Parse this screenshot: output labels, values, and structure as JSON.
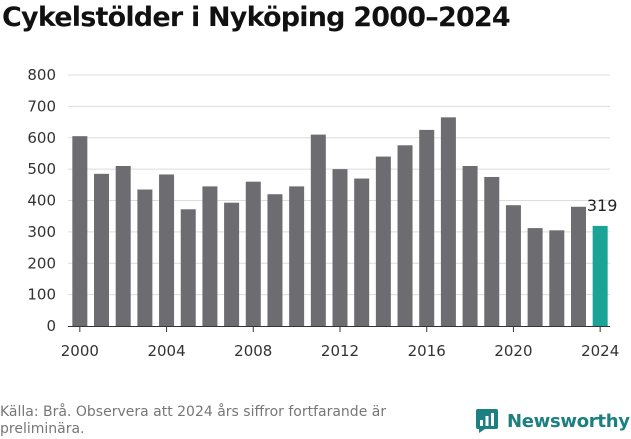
{
  "title": "Cykelstölder i Nyköping 2000–2024",
  "source": "Källa: Brå. Observera att 2024 års siffror fortfarande är preliminära.",
  "brand": {
    "name": "Newsworthy",
    "icon": "newsworthy-logo-icon",
    "color": "#1c8080"
  },
  "chart_data": {
    "type": "bar",
    "title": "Cykelstölder i Nyköping 2000–2024",
    "xlabel": "",
    "ylabel": "",
    "categories": [
      2000,
      2001,
      2002,
      2003,
      2004,
      2005,
      2006,
      2007,
      2008,
      2009,
      2010,
      2011,
      2012,
      2013,
      2014,
      2015,
      2016,
      2017,
      2018,
      2019,
      2020,
      2021,
      2022,
      2023,
      2024
    ],
    "values": [
      605,
      485,
      510,
      435,
      483,
      372,
      445,
      393,
      460,
      420,
      445,
      610,
      500,
      470,
      540,
      576,
      625,
      665,
      510,
      475,
      385,
      312,
      305,
      380,
      319
    ],
    "ylim": [
      0,
      800
    ],
    "yticks": [
      0,
      100,
      200,
      300,
      400,
      500,
      600,
      700,
      800
    ],
    "xticks": [
      2000,
      2004,
      2008,
      2012,
      2016,
      2020,
      2024
    ],
    "highlight": {
      "category": 2024,
      "label": "319",
      "color": "#1aa396"
    },
    "bar_color": "#6d6c70",
    "grid": true,
    "legend": "none"
  }
}
